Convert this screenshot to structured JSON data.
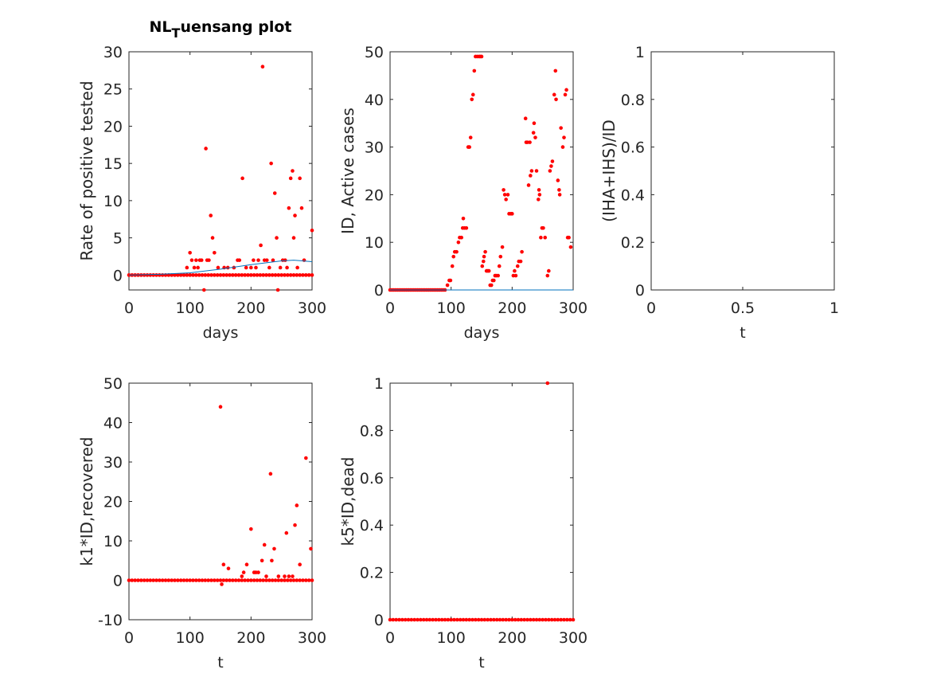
{
  "chart_data": [
    {
      "type": "scatter",
      "title": {
        "main": "NL",
        "subscript": "T",
        "rest": "uensang plot"
      },
      "xlabel": "days",
      "ylabel": "Rate of positive tested",
      "xlim": [
        0,
        300
      ],
      "ylim": [
        -2,
        30
      ],
      "xticks": [
        0,
        100,
        200,
        300
      ],
      "yticks": [
        0,
        5,
        10,
        15,
        20,
        25,
        30
      ],
      "series": [
        {
          "type": "scatter",
          "color": "#ff0000",
          "x": [
            0,
            5,
            10,
            15,
            20,
            25,
            30,
            35,
            40,
            45,
            50,
            55,
            60,
            65,
            70,
            75,
            80,
            85,
            90,
            95,
            100,
            105,
            110,
            115,
            120,
            125,
            130,
            135,
            140,
            145,
            150,
            155,
            160,
            165,
            170,
            175,
            180,
            185,
            190,
            195,
            200,
            205,
            210,
            215,
            220,
            225,
            230,
            235,
            240,
            245,
            250,
            255,
            260,
            265,
            270,
            275,
            280,
            285,
            290,
            295,
            300
          ],
          "values": [
            0,
            0,
            0,
            0,
            0,
            0,
            0,
            0,
            0,
            0,
            0,
            0,
            0,
            0,
            0,
            0,
            0,
            0,
            0,
            0,
            0,
            0,
            0,
            0,
            0,
            0,
            0,
            0,
            0,
            0,
            0,
            0,
            0,
            0,
            0,
            0,
            0,
            0,
            0,
            0,
            0,
            0,
            0,
            0,
            0,
            0,
            0,
            0,
            0,
            0,
            0,
            0,
            0,
            0,
            0,
            0,
            0,
            0,
            0,
            0,
            0
          ]
        },
        {
          "type": "scatter",
          "color": "#ff0000",
          "x": [
            95,
            100,
            103,
            107,
            110,
            113,
            116,
            119,
            123,
            126,
            128,
            131,
            134,
            137,
            140,
            146,
            156,
            162,
            172,
            178,
            181,
            186,
            192,
            200,
            204,
            208,
            212,
            216,
            219,
            222,
            226,
            230,
            233,
            236,
            239,
            242,
            244,
            248,
            252,
            256,
            259,
            262,
            265,
            268,
            270,
            272,
            276,
            280,
            283,
            287,
            300
          ],
          "values": [
            1,
            3,
            2,
            1,
            2,
            1,
            2,
            2,
            -2,
            17,
            2,
            2,
            8,
            5,
            3,
            1,
            1,
            1,
            1,
            2,
            2,
            13,
            1,
            1,
            2,
            1,
            2,
            4,
            28,
            2,
            2,
            1,
            15,
            2,
            11,
            5,
            -2,
            1,
            2,
            2,
            1,
            9,
            13,
            14,
            5,
            8,
            1,
            13,
            9,
            2,
            6
          ]
        },
        {
          "type": "line",
          "color": "#0072bd",
          "x": [
            0,
            50,
            100,
            150,
            200,
            250,
            270,
            300
          ],
          "values": [
            0,
            0.1,
            0.3,
            0.8,
            1.4,
            1.9,
            2.0,
            1.8
          ]
        }
      ]
    },
    {
      "type": "scatter",
      "xlabel": "days",
      "ylabel": "ID, Active cases",
      "xlim": [
        0,
        300
      ],
      "ylim": [
        0,
        50
      ],
      "xticks": [
        0,
        100,
        200,
        300
      ],
      "yticks": [
        0,
        10,
        20,
        30,
        40,
        50
      ],
      "series": [
        {
          "type": "line",
          "color": "#0072bd",
          "x": [
            0,
            300
          ],
          "values": [
            0,
            0
          ]
        },
        {
          "type": "scatter",
          "color": "#ff0000",
          "x": [
            0,
            3,
            6,
            9,
            12,
            15,
            18,
            21,
            24,
            27,
            30,
            33,
            36,
            39,
            42,
            45,
            48,
            51,
            54,
            57,
            60,
            63,
            66,
            69,
            72,
            75,
            78,
            81,
            84,
            87,
            90
          ],
          "values": [
            0,
            0,
            0,
            0,
            0,
            0,
            0,
            0,
            0,
            0,
            0,
            0,
            0,
            0,
            0,
            0,
            0,
            0,
            0,
            0,
            0,
            0,
            0,
            0,
            0,
            0,
            0,
            0,
            0,
            0,
            0
          ]
        },
        {
          "type": "scatter",
          "color": "#ff0000",
          "x": [
            94,
            97,
            99,
            102,
            104,
            106,
            109,
            112,
            114,
            117,
            119,
            120,
            122,
            125,
            128,
            130,
            132,
            134,
            136,
            138,
            140,
            143,
            146,
            148,
            150,
            151,
            153,
            154,
            156,
            158,
            160,
            162,
            164,
            166,
            168,
            170,
            172,
            174,
            177,
            179,
            181,
            184,
            186,
            188,
            190,
            193,
            195,
            198,
            200,
            202,
            204,
            206,
            209,
            211,
            214,
            216,
            222,
            223,
            225,
            227,
            229,
            230,
            232,
            235,
            236,
            238,
            240,
            243,
            244,
            245,
            247,
            249,
            251,
            254,
            258,
            260,
            262,
            264,
            266,
            269,
            271,
            272,
            275,
            277,
            278,
            280,
            283,
            285,
            287,
            289,
            291,
            293,
            296
          ],
          "values": [
            1,
            2,
            2,
            5,
            7,
            8,
            8,
            10,
            11,
            11,
            13,
            15,
            13,
            13,
            30,
            30,
            32,
            40,
            41,
            46,
            49,
            49,
            49,
            49,
            49,
            5,
            6,
            7,
            8,
            4,
            4,
            4,
            1,
            1,
            2,
            2,
            3,
            3,
            3,
            5,
            7,
            9,
            21,
            20,
            19,
            20,
            16,
            16,
            16,
            3,
            4,
            3,
            5,
            6,
            6,
            8,
            36,
            31,
            31,
            22,
            31,
            24,
            25,
            33,
            35,
            32,
            25,
            19,
            21,
            20,
            11,
            13,
            13,
            11,
            3,
            4,
            25,
            26,
            27,
            41,
            46,
            40,
            23,
            21,
            20,
            34,
            30,
            32,
            41,
            42,
            11,
            11,
            9
          ]
        }
      ]
    },
    {
      "type": "scatter",
      "xlabel": "t",
      "ylabel": "(IHA+IHS)/ID",
      "xlim": [
        0,
        1
      ],
      "ylim": [
        0,
        1
      ],
      "xticks": [
        0,
        0.5,
        1
      ],
      "yticks": [
        0,
        0.2,
        0.4,
        0.6,
        0.8,
        1
      ],
      "series": []
    },
    {
      "type": "scatter",
      "xlabel": "t",
      "ylabel": "k1*ID,recovered",
      "xlim": [
        0,
        300
      ],
      "ylim": [
        -10,
        50
      ],
      "xticks": [
        0,
        100,
        200,
        300
      ],
      "yticks": [
        -10,
        0,
        10,
        20,
        30,
        40,
        50
      ],
      "series": [
        {
          "type": "scatter",
          "color": "#ff0000",
          "x": [
            0,
            5,
            10,
            15,
            20,
            25,
            30,
            35,
            40,
            45,
            50,
            55,
            60,
            65,
            70,
            75,
            80,
            85,
            90,
            95,
            100,
            105,
            110,
            115,
            120,
            125,
            130,
            135,
            140,
            145,
            150,
            155,
            160,
            165,
            170,
            175,
            180,
            185,
            190,
            195,
            200,
            205,
            210,
            215,
            220,
            225,
            230,
            235,
            240,
            245,
            250,
            255,
            260,
            265,
            270,
            275,
            280,
            285,
            290,
            295,
            300
          ],
          "values": [
            0,
            0,
            0,
            0,
            0,
            0,
            0,
            0,
            0,
            0,
            0,
            0,
            0,
            0,
            0,
            0,
            0,
            0,
            0,
            0,
            0,
            0,
            0,
            0,
            0,
            0,
            0,
            0,
            0,
            0,
            0,
            0,
            0,
            0,
            0,
            0,
            0,
            0,
            0,
            0,
            0,
            0,
            0,
            0,
            0,
            0,
            0,
            0,
            0,
            0,
            0,
            0,
            0,
            0,
            0,
            0,
            0,
            0,
            0,
            0,
            0
          ]
        },
        {
          "type": "scatter",
          "color": "#ff0000",
          "x": [
            150,
            152,
            155,
            163,
            185,
            188,
            193,
            200,
            205,
            208,
            212,
            218,
            222,
            225,
            232,
            234,
            238,
            245,
            255,
            258,
            262,
            268,
            272,
            275,
            280,
            290,
            298
          ],
          "values": [
            44,
            -1,
            4,
            3,
            1,
            2,
            4,
            13,
            2,
            2,
            2,
            5,
            9,
            1,
            27,
            5,
            8,
            1,
            1,
            12,
            1,
            1,
            14,
            19,
            4,
            31,
            8
          ]
        }
      ]
    },
    {
      "type": "scatter",
      "xlabel": "t",
      "ylabel": "k5*ID,dead",
      "xlim": [
        0,
        300
      ],
      "ylim": [
        0,
        1
      ],
      "xticks": [
        0,
        100,
        200,
        300
      ],
      "yticks": [
        0,
        0.2,
        0.4,
        0.6,
        0.8,
        1
      ],
      "series": [
        {
          "type": "scatter",
          "color": "#ff0000",
          "x": [
            0,
            5,
            10,
            15,
            20,
            25,
            30,
            35,
            40,
            45,
            50,
            55,
            60,
            65,
            70,
            75,
            80,
            85,
            90,
            95,
            100,
            105,
            110,
            115,
            120,
            125,
            130,
            135,
            140,
            145,
            150,
            155,
            160,
            165,
            170,
            175,
            180,
            185,
            190,
            195,
            200,
            205,
            210,
            215,
            220,
            225,
            230,
            235,
            240,
            245,
            250,
            255,
            260,
            265,
            270,
            275,
            280,
            285,
            290,
            295,
            300
          ],
          "values": [
            0,
            0,
            0,
            0,
            0,
            0,
            0,
            0,
            0,
            0,
            0,
            0,
            0,
            0,
            0,
            0,
            0,
            0,
            0,
            0,
            0,
            0,
            0,
            0,
            0,
            0,
            0,
            0,
            0,
            0,
            0,
            0,
            0,
            0,
            0,
            0,
            0,
            0,
            0,
            0,
            0,
            0,
            0,
            0,
            0,
            0,
            0,
            0,
            0,
            0,
            0,
            0,
            0,
            0,
            0,
            0,
            0,
            0,
            0,
            0,
            0
          ]
        },
        {
          "type": "scatter",
          "color": "#ff0000",
          "x": [
            258
          ],
          "values": [
            1
          ]
        }
      ]
    }
  ]
}
